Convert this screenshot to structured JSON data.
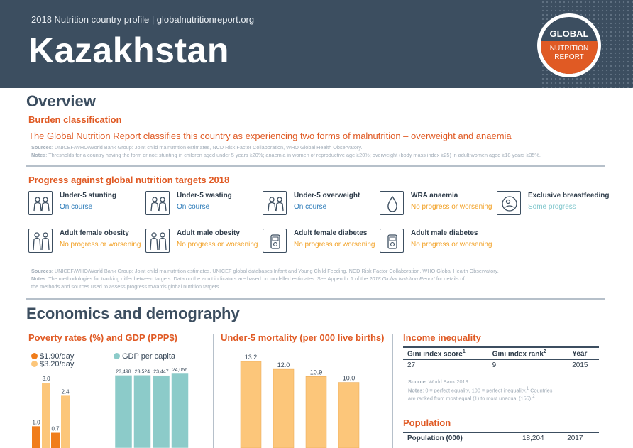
{
  "header": {
    "subtitle": "2018 Nutrition country profile  |  globalnutritionreport.org",
    "country": "Kazakhstan",
    "logo": {
      "line1": "GLOBAL",
      "line2": "NUTRITION",
      "line3": "REPORT"
    }
  },
  "overview": {
    "title": "Overview",
    "burden_heading": "Burden classification",
    "burden_text": "The Global Nutrition Report classifies this country as experiencing two forms of malnutrition – overweight and anaemia",
    "burden_sources_label": "Sources",
    "burden_sources": ": UNICEF/WHO/World Bank Group: Joint child malnutrition estimates, NCD Risk Factor Collaboration, WHO Global Health Observatory.",
    "burden_notes_label": "Notes",
    "burden_notes": ": Thresholds for a country having the form or not: stunting in children aged under 5 years ≥20%; anaemia in women of reproductive age ≥20%; overweight (body mass index ≥25) in adult women aged ≥18 years ≥35%.",
    "progress_heading": "Progress against global nutrition targets 2018",
    "targets": [
      {
        "name": "Under-5 stunting",
        "status": "On course",
        "tone": "blue",
        "icon": "children-icon"
      },
      {
        "name": "Under-5 wasting",
        "status": "On course",
        "tone": "blue",
        "icon": "children-icon"
      },
      {
        "name": "Under-5 overweight",
        "status": "On course",
        "tone": "blue",
        "icon": "children-icon"
      },
      {
        "name": "WRA anaemia",
        "status": "No progress or worsening",
        "tone": "orange",
        "icon": "blood-drop-icon"
      },
      {
        "name": "Exclusive breastfeeding",
        "status": "Some progress",
        "tone": "teal",
        "icon": "breastfeeding-icon"
      },
      {
        "name": "Adult female obesity",
        "status": "No progress or worsening",
        "tone": "orange",
        "icon": "adults-icon"
      },
      {
        "name": "Adult male obesity",
        "status": "No progress or worsening",
        "tone": "orange",
        "icon": "adults-icon"
      },
      {
        "name": "Adult female diabetes",
        "status": "No progress or worsening",
        "tone": "orange",
        "icon": "glucose-meter-icon"
      },
      {
        "name": "Adult male diabetes",
        "status": "No progress or worsening",
        "tone": "orange",
        "icon": "glucose-meter-icon"
      }
    ],
    "progress_sources_label": "Sources",
    "progress_sources": ": UNICEF/WHO/World Bank Group: Joint child malnutrition estimates, UNICEF global databases Infant and Young Child Feeding, NCD Risk Factor Collaboration, WHO Global Health Observatory.",
    "progress_notes_label": "Notes",
    "progress_notes_a": ": The methodologies for tracking differ between targets. Data on the adult indicators are based on modelled estimates. See Appendix 1 of the ",
    "progress_notes_report": "2018 Global Nutrition Report",
    "progress_notes_b": " for details of",
    "progress_notes_line2": "the methods and sources used to assess progress towards global nutrition targets."
  },
  "economics": {
    "title": "Economics and demography",
    "poverty_heading": "Poverty rates (%) and GDP (PPP$)",
    "mortality_heading": "Under-5 mortality (per 000 live births)",
    "income_heading": "Income inequality",
    "income_table": {
      "headers": [
        "Gini index score",
        "Gini index rank",
        "Year"
      ],
      "sup_score": "1",
      "sup_rank": "2",
      "row": [
        "27",
        "9",
        "2015"
      ]
    },
    "income_source_label": "Source",
    "income_source": ": World Bank 2018.",
    "income_notes_label": "Notes",
    "income_notes": ": 0 = perfect equality, 100 = perfect inequality.",
    "income_notes_sup1": "1",
    "income_notes_b": " Countries",
    "income_notes_line2": "are ranked from most equal (1) to most unequal (155).",
    "income_notes_sup2": "2",
    "population_heading": "Population",
    "population_row": [
      "Population (000)",
      "18,204",
      "2017"
    ]
  },
  "colors": {
    "header_bg": "#3c4e60",
    "accent_orange": "#e05a24",
    "poverty_190": "#f07d1c",
    "poverty_320": "#fcc67a",
    "gdp": "#8ccbc9",
    "mortality": "#fcc67a"
  },
  "chart_data": [
    {
      "type": "bar",
      "title": "Poverty rates (%) and GDP (PPP$)",
      "series": [
        {
          "name": "$1.90/day",
          "values": [
            1.0,
            0.7
          ]
        },
        {
          "name": "$3.20/day",
          "values": [
            3.0,
            2.4
          ]
        }
      ],
      "data_labels": {
        "$1.90/day": [
          "1.0",
          "0.7"
        ],
        "$3.20/day": [
          "3.0",
          "2.4"
        ]
      },
      "ylim": [
        0,
        4
      ]
    },
    {
      "type": "bar",
      "series": [
        {
          "name": "GDP per capita",
          "values": [
            23498,
            23524,
            23447,
            24056
          ]
        }
      ],
      "data_labels": [
        "23,498",
        "23,524",
        "23,447",
        "24,056"
      ],
      "ylim": [
        0,
        26000
      ]
    },
    {
      "type": "bar",
      "title": "Under-5 mortality (per 000 live births)",
      "values": [
        13.2,
        12.0,
        10.9,
        10.0
      ],
      "data_labels": [
        "13.2",
        "12.0",
        "10.9",
        "10.0"
      ],
      "ylim": [
        0,
        14
      ]
    }
  ]
}
